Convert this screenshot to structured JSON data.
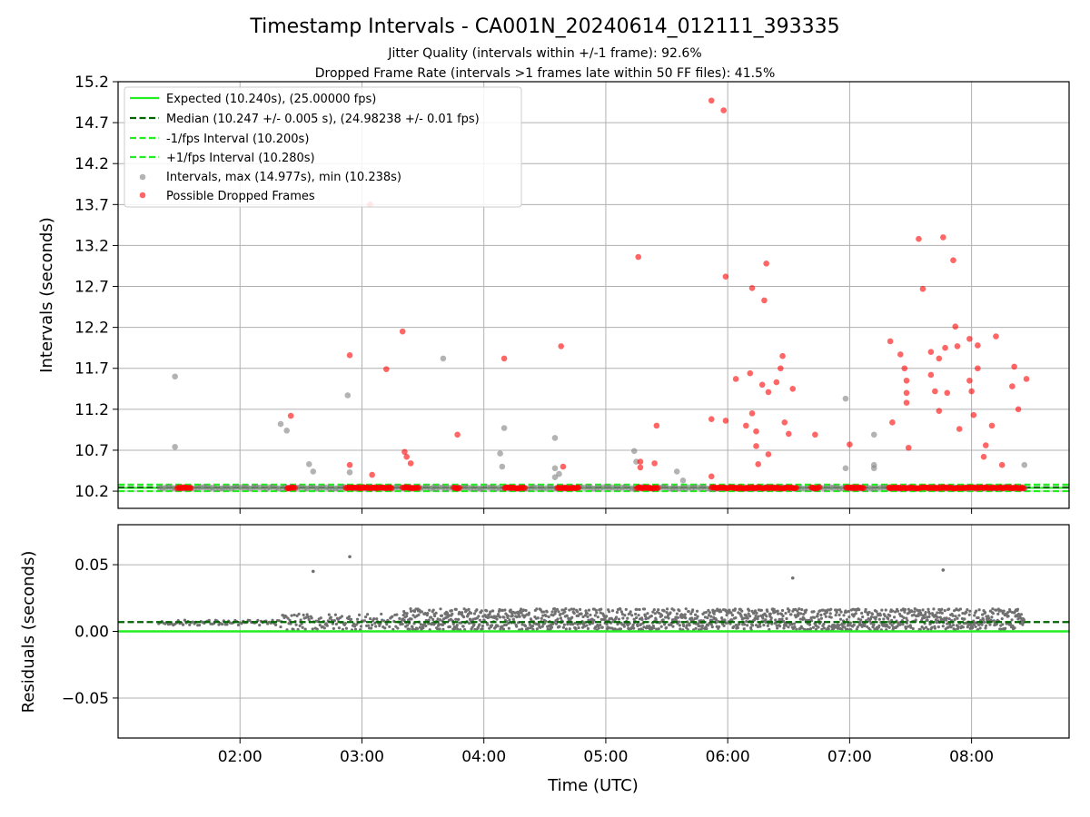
{
  "chart_data": [
    {
      "type": "scatter",
      "title": "Timestamp Intervals - CA001N_20240614_012111_393335",
      "subtitle_1": "Jitter Quality (intervals within +/-1 frame): 92.6%",
      "subtitle_2": "Dropped Frame Rate (intervals >1 frames late within 50 FF files): 41.5%",
      "xlabel": "",
      "ylabel": "Intervals (seconds)",
      "xlim": [
        "01:00",
        "08:48"
      ],
      "ylim": [
        9.99,
        15.2
      ],
      "yticks": [
        "10.2",
        "10.7",
        "11.2",
        "11.7",
        "12.2",
        "12.7",
        "13.2",
        "13.7",
        "14.2",
        "14.7",
        "15.2"
      ],
      "grid": true,
      "legend_placement": "upper-left",
      "legend": [
        "Expected (10.240s), (25.00000 fps)",
        "Median (10.247 +/- 0.005 s), (24.98238 +/- 0.01 fps)",
        "-1/fps Interval (10.200s)",
        "+1/fps Interval (10.280s)",
        "Intervals, max (14.977s), min (10.238s)",
        "Possible Dropped Frames"
      ],
      "reference_lines": {
        "expected": 10.24,
        "median": 10.247,
        "minus_1fps": 10.2,
        "plus_1fps": 10.28
      },
      "series": [
        {
          "name": "Intervals, max (14.977s), min (10.238s)",
          "points": [
            [
              "01:28",
              11.6
            ],
            [
              "01:28",
              10.74
            ],
            [
              "02:20",
              11.02
            ],
            [
              "02:23",
              10.94
            ],
            [
              "02:34",
              10.53
            ],
            [
              "02:36",
              10.44
            ],
            [
              "02:53",
              11.37
            ],
            [
              "02:54",
              10.43
            ],
            [
              "03:40",
              11.82
            ],
            [
              "04:08",
              10.66
            ],
            [
              "04:09",
              10.5
            ],
            [
              "04:10",
              10.97
            ],
            [
              "04:35",
              10.85
            ],
            [
              "04:35",
              10.48
            ],
            [
              "04:35",
              10.37
            ],
            [
              "04:37",
              10.41
            ],
            [
              "05:14",
              10.69
            ],
            [
              "05:15",
              10.56
            ],
            [
              "05:35",
              10.44
            ],
            [
              "05:38",
              10.33
            ],
            [
              "06:58",
              11.33
            ],
            [
              "06:58",
              10.48
            ],
            [
              "07:12",
              10.89
            ],
            [
              "07:12",
              10.52
            ],
            [
              "07:12",
              10.48
            ],
            [
              "08:26",
              10.52
            ]
          ]
        },
        {
          "name": "Possible Dropped Frames",
          "points": [
            [
              "02:25",
              11.12
            ],
            [
              "02:54",
              11.86
            ],
            [
              "02:54",
              10.52
            ],
            [
              "03:04",
              13.7
            ],
            [
              "03:05",
              10.4
            ],
            [
              "03:12",
              11.69
            ],
            [
              "03:20",
              12.15
            ],
            [
              "03:21",
              10.68
            ],
            [
              "03:22",
              10.62
            ],
            [
              "03:24",
              10.54
            ],
            [
              "03:47",
              10.89
            ],
            [
              "04:10",
              11.82
            ],
            [
              "04:38",
              11.97
            ],
            [
              "04:39",
              10.5
            ],
            [
              "05:16",
              13.06
            ],
            [
              "05:17",
              10.56
            ],
            [
              "05:17",
              10.49
            ],
            [
              "05:24",
              10.54
            ],
            [
              "05:25",
              11.0
            ],
            [
              "05:52",
              14.97
            ],
            [
              "05:52",
              11.08
            ],
            [
              "05:52",
              10.38
            ],
            [
              "05:58",
              14.85
            ],
            [
              "05:59",
              12.82
            ],
            [
              "05:59",
              11.06
            ],
            [
              "06:04",
              11.57
            ],
            [
              "06:09",
              11.0
            ],
            [
              "06:11",
              11.64
            ],
            [
              "06:12",
              12.68
            ],
            [
              "06:12",
              11.15
            ],
            [
              "06:14",
              10.93
            ],
            [
              "06:14",
              10.75
            ],
            [
              "06:15",
              10.53
            ],
            [
              "06:17",
              11.5
            ],
            [
              "06:18",
              12.53
            ],
            [
              "06:19",
              12.98
            ],
            [
              "06:20",
              11.41
            ],
            [
              "06:20",
              10.65
            ],
            [
              "06:24",
              11.53
            ],
            [
              "06:26",
              11.7
            ],
            [
              "06:27",
              11.85
            ],
            [
              "06:28",
              11.04
            ],
            [
              "06:30",
              10.9
            ],
            [
              "06:32",
              11.45
            ],
            [
              "06:43",
              10.89
            ],
            [
              "07:00",
              10.77
            ],
            [
              "07:20",
              12.03
            ],
            [
              "07:21",
              11.04
            ],
            [
              "07:25",
              11.87
            ],
            [
              "07:27",
              11.7
            ],
            [
              "07:28",
              11.55
            ],
            [
              "07:28",
              11.4
            ],
            [
              "07:28",
              11.28
            ],
            [
              "07:29",
              10.73
            ],
            [
              "07:34",
              13.28
            ],
            [
              "07:36",
              12.67
            ],
            [
              "07:40",
              11.9
            ],
            [
              "07:40",
              11.62
            ],
            [
              "07:42",
              11.42
            ],
            [
              "07:44",
              11.82
            ],
            [
              "07:44",
              11.18
            ],
            [
              "07:46",
              13.3
            ],
            [
              "07:47",
              11.95
            ],
            [
              "07:48",
              11.4
            ],
            [
              "07:51",
              13.02
            ],
            [
              "07:52",
              12.21
            ],
            [
              "07:53",
              11.97
            ],
            [
              "07:54",
              10.96
            ],
            [
              "07:59",
              12.06
            ],
            [
              "07:59",
              11.55
            ],
            [
              "08:00",
              11.42
            ],
            [
              "08:01",
              11.13
            ],
            [
              "08:03",
              11.98
            ],
            [
              "08:03",
              11.7
            ],
            [
              "08:06",
              10.62
            ],
            [
              "08:07",
              10.76
            ],
            [
              "08:10",
              11.0
            ],
            [
              "08:12",
              12.09
            ],
            [
              "08:15",
              10.52
            ],
            [
              "08:20",
              11.48
            ],
            [
              "08:21",
              11.72
            ],
            [
              "08:23",
              11.2
            ],
            [
              "08:27",
              11.57
            ]
          ]
        }
      ]
    },
    {
      "type": "scatter",
      "title": "",
      "xlabel": "Time (UTC)",
      "ylabel": "Residuals (seconds)",
      "xlim": [
        "01:00",
        "08:48"
      ],
      "ylim": [
        -0.08,
        0.08
      ],
      "yticks": [
        "−0.05",
        "0.00",
        "0.05"
      ],
      "xticks": [
        "02:00",
        "03:00",
        "04:00",
        "05:00",
        "06:00",
        "07:00",
        "08:00"
      ],
      "grid": true,
      "reference_lines": {
        "expected": 0.0,
        "median": 0.007
      },
      "outliers": [
        [
          "02:36",
          0.045
        ],
        [
          "02:54",
          0.056
        ],
        [
          "06:32",
          0.04
        ],
        [
          "07:46",
          0.046
        ]
      ]
    }
  ]
}
